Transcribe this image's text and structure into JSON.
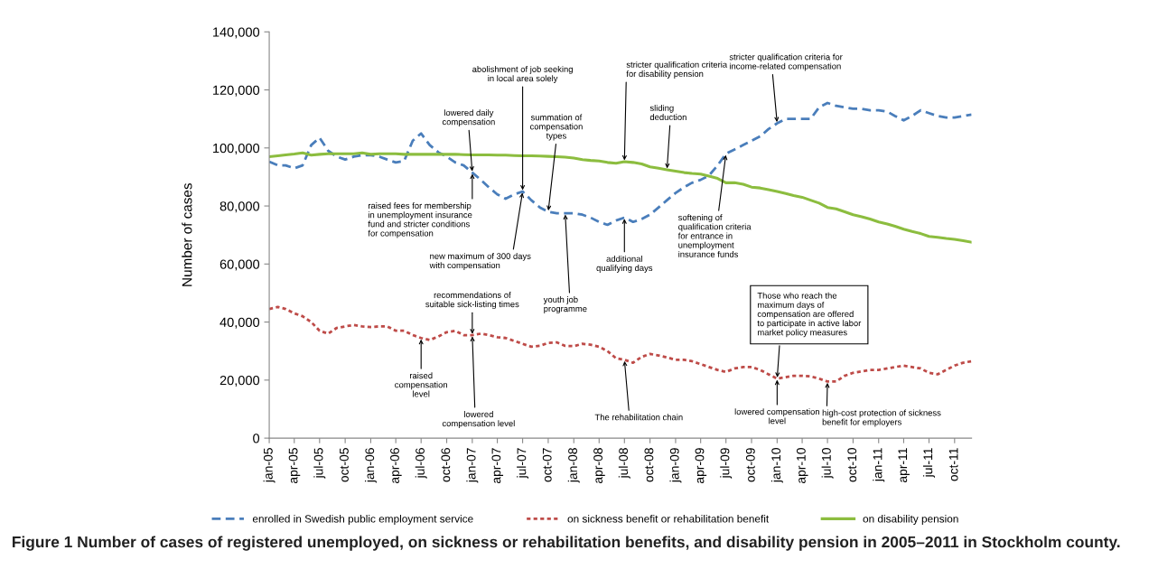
{
  "chart_data": {
    "type": "line",
    "title": "Figure 1 Number of cases of registered unemployed, on sickness or rehabilitation benefits, and disability pension in 2005–2011 in Stockholm county.",
    "ylabel": "Number of cases",
    "x": [
      "2005-01",
      "2005-02",
      "2005-03",
      "2005-04",
      "2005-05",
      "2005-06",
      "2005-07",
      "2005-08",
      "2005-09",
      "2005-10",
      "2005-11",
      "2005-12",
      "2006-01",
      "2006-02",
      "2006-03",
      "2006-04",
      "2006-05",
      "2006-06",
      "2006-07",
      "2006-08",
      "2006-09",
      "2006-10",
      "2006-11",
      "2006-12",
      "2007-01",
      "2007-02",
      "2007-03",
      "2007-04",
      "2007-05",
      "2007-06",
      "2007-07",
      "2007-08",
      "2007-09",
      "2007-10",
      "2007-11",
      "2007-12",
      "2008-01",
      "2008-02",
      "2008-03",
      "2008-04",
      "2008-05",
      "2008-06",
      "2008-07",
      "2008-08",
      "2008-09",
      "2008-10",
      "2008-11",
      "2008-12",
      "2009-01",
      "2009-02",
      "2009-03",
      "2009-04",
      "2009-05",
      "2009-06",
      "2009-07",
      "2009-08",
      "2009-09",
      "2009-10",
      "2009-11",
      "2009-12",
      "2010-01",
      "2010-02",
      "2010-03",
      "2010-04",
      "2010-05",
      "2010-06",
      "2010-07",
      "2010-08",
      "2010-09",
      "2010-10",
      "2010-11",
      "2010-12",
      "2011-01",
      "2011-02",
      "2011-03",
      "2011-04",
      "2011-05",
      "2011-06",
      "2011-07",
      "2011-08",
      "2011-09",
      "2011-10",
      "2011-11",
      "2011-12"
    ],
    "series": [
      {
        "name": "enrolled in Swedish public employment service",
        "color": "#4a7ebb",
        "line_style": "dashed",
        "values": [
          95300,
          94000,
          94000,
          93000,
          94000,
          101000,
          103500,
          99000,
          97000,
          96000,
          97000,
          97500,
          97500,
          97000,
          96000,
          95000,
          95500,
          102500,
          105000,
          101000,
          98500,
          97000,
          95000,
          94000,
          91500,
          89000,
          86500,
          84000,
          82500,
          84000,
          85000,
          82000,
          79500,
          78000,
          77500,
          77500,
          77500,
          77000,
          76000,
          74500,
          73500,
          75000,
          76000,
          74500,
          75500,
          77000,
          79500,
          82000,
          84500,
          86500,
          88000,
          89000,
          90500,
          94000,
          98000,
          99500,
          101000,
          102500,
          104000,
          106500,
          108500,
          110000,
          110000,
          110000,
          110000,
          114000,
          115500,
          114500,
          114000,
          113500,
          113500,
          113000,
          113000,
          112500,
          111000,
          109500,
          111000,
          113000,
          112000,
          111000,
          110500,
          110500,
          111000,
          111500
        ]
      },
      {
        "name": "on sickness benefit or rehabilitation benefit",
        "color": "#be4b48",
        "line_style": "dotted",
        "values": [
          44500,
          45200,
          44500,
          43000,
          42000,
          40000,
          37000,
          36000,
          38000,
          38500,
          39000,
          38500,
          38300,
          38500,
          38500,
          37000,
          37000,
          35500,
          34500,
          33800,
          35000,
          36500,
          37000,
          35500,
          35500,
          36000,
          35500,
          34800,
          34500,
          33500,
          32500,
          31500,
          31800,
          32800,
          33000,
          31800,
          31700,
          32500,
          32200,
          31500,
          30000,
          27500,
          27000,
          26000,
          28000,
          29000,
          28500,
          27800,
          27000,
          27000,
          26500,
          25500,
          24500,
          23500,
          22800,
          24000,
          24500,
          24500,
          23500,
          22000,
          20500,
          21000,
          21500,
          21500,
          21300,
          20500,
          19500,
          19500,
          21500,
          22500,
          23000,
          23500,
          23500,
          24000,
          24500,
          25000,
          24500,
          24000,
          22500,
          22000,
          23500,
          25000,
          26000,
          26500
        ]
      },
      {
        "name": "on disability pension",
        "color": "#8cbd3f",
        "line_style": "solid",
        "values": [
          97000,
          97300,
          97600,
          97900,
          98300,
          97500,
          97800,
          98000,
          98000,
          98000,
          98000,
          98300,
          97800,
          98000,
          98000,
          98000,
          97800,
          97800,
          97800,
          97800,
          97800,
          97800,
          97800,
          97700,
          97600,
          97600,
          97600,
          97500,
          97500,
          97400,
          97300,
          97300,
          97200,
          97100,
          97000,
          96800,
          96500,
          96000,
          95700,
          95500,
          95000,
          94700,
          95300,
          95000,
          94500,
          93500,
          93000,
          92500,
          92000,
          91500,
          91200,
          91000,
          90300,
          89500,
          88000,
          88000,
          87500,
          86500,
          86200,
          85600,
          85000,
          84300,
          83600,
          83000,
          82000,
          81000,
          79500,
          79000,
          78000,
          77000,
          76300,
          75500,
          74500,
          73800,
          73000,
          72000,
          71200,
          70500,
          69500,
          69200,
          68800,
          68500,
          68000,
          67500
        ]
      }
    ],
    "xlim": [
      "2005-01",
      "2011-12"
    ],
    "xticks": [
      {
        "value": "2005-01",
        "label": "jan-05"
      },
      {
        "value": "2005-04",
        "label": "apr-05"
      },
      {
        "value": "2005-07",
        "label": "jul-05"
      },
      {
        "value": "2005-10",
        "label": "oct-05"
      },
      {
        "value": "2006-01",
        "label": "jan-06"
      },
      {
        "value": "2006-04",
        "label": "apr-06"
      },
      {
        "value": "2006-07",
        "label": "jul-06"
      },
      {
        "value": "2006-10",
        "label": "oct-06"
      },
      {
        "value": "2007-01",
        "label": "jan-07"
      },
      {
        "value": "2007-04",
        "label": "apr-07"
      },
      {
        "value": "2007-07",
        "label": "jul-07"
      },
      {
        "value": "2007-10",
        "label": "oct-07"
      },
      {
        "value": "2008-01",
        "label": "jan-08"
      },
      {
        "value": "2008-04",
        "label": "apr-08"
      },
      {
        "value": "2008-07",
        "label": "jul-08"
      },
      {
        "value": "2008-10",
        "label": "oct-08"
      },
      {
        "value": "2009-01",
        "label": "jan-09"
      },
      {
        "value": "2009-04",
        "label": "apr-09"
      },
      {
        "value": "2009-07",
        "label": "jul-09"
      },
      {
        "value": "2009-10",
        "label": "oct-09"
      },
      {
        "value": "2010-01",
        "label": "jan-10"
      },
      {
        "value": "2010-04",
        "label": "apr-10"
      },
      {
        "value": "2010-07",
        "label": "jul-10"
      },
      {
        "value": "2010-10",
        "label": "oct-10"
      },
      {
        "value": "2011-01",
        "label": "jan-11"
      },
      {
        "value": "2011-04",
        "label": "apr-11"
      },
      {
        "value": "2011-07",
        "label": "jul-11"
      },
      {
        "value": "2011-10",
        "label": "oct-11"
      }
    ],
    "ylim": [
      0,
      140000
    ],
    "yticks": [
      {
        "value": 0,
        "label": "0"
      },
      {
        "value": 20000,
        "label": "20,000"
      },
      {
        "value": 40000,
        "label": "40,000"
      },
      {
        "value": 60000,
        "label": "60,000"
      },
      {
        "value": 80000,
        "label": "80,000"
      },
      {
        "value": 100000,
        "label": "100,000"
      },
      {
        "value": 120000,
        "label": "120,000"
      },
      {
        "value": 140000,
        "label": "140,000"
      }
    ],
    "grid": false,
    "legend": "bottom",
    "marker": "none",
    "annotations": [
      {
        "text": "lowered daily\ncompensation",
        "x": "2007-01",
        "y": 91500
      },
      {
        "text": "raised fees for membership\nin unemployment insurance\nfund and stricter conditions\nfor compensation",
        "x": "2007-01",
        "y": 91500
      },
      {
        "text": "abolishment of job seeking\nin local area solely",
        "x": "2007-07",
        "y": 85000
      },
      {
        "text": "new maximum of 300 days\nwith compensation",
        "x": "2007-07",
        "y": 85000
      },
      {
        "text": "summation of\ncompensation\ntypes",
        "x": "2007-10",
        "y": 78000
      },
      {
        "text": "youth job\nprogramme",
        "x": "2007-12",
        "y": 77500
      },
      {
        "text": "stricter qualification criteria\nfor disability pension",
        "x": "2008-07",
        "y": 95300
      },
      {
        "text": "additional\nqualifying days",
        "x": "2008-07",
        "y": 76000
      },
      {
        "text": "sliding\ndeduction",
        "x": "2008-12",
        "y": 92500
      },
      {
        "text": "softening of\nqualification criteria\nfor entrance in\nunemployment\ninsurance funds",
        "x": "2009-07",
        "y": 98000
      },
      {
        "text": "stricter qualification criteria for\nincome-related compensation",
        "x": "2010-01",
        "y": 108500
      },
      {
        "text": "Those who reach the\nmaximum days of\ncompensation are offered\nto participate in active labor\nmarket policy measures",
        "x": "2010-01",
        "y": 20500
      },
      {
        "text": "recommendations of\nsuitable sick-listing times",
        "x": "2007-01",
        "y": 35500
      },
      {
        "text": "raised\ncompensation\nlevel",
        "x": "2006-07",
        "y": 34500
      },
      {
        "text": "lowered\ncompensation level",
        "x": "2007-01",
        "y": 35500
      },
      {
        "text": "The rehabilitation chain",
        "x": "2008-07",
        "y": 27000
      },
      {
        "text": "lowered compensation\nlevel",
        "x": "2010-01",
        "y": 20500
      },
      {
        "text": "high-cost protection of sickness\nbenefit for employers",
        "x": "2010-07",
        "y": 19500
      }
    ]
  }
}
